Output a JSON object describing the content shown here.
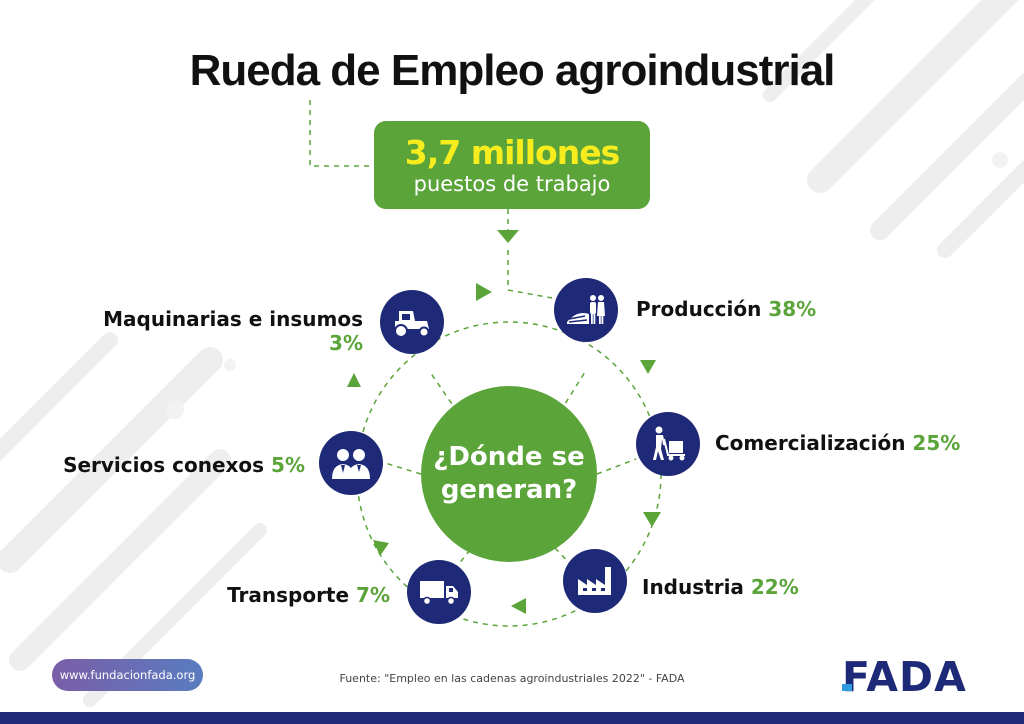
{
  "title": "Rueda de Empleo agroindustrial",
  "total": {
    "value": "3,7 millones",
    "unit": "puestos de trabajo"
  },
  "center": {
    "line1": "¿Dónde se",
    "line2": "generan?"
  },
  "sectors": [
    {
      "name": "Producción",
      "percent": "38%",
      "icon": "farmers-field-icon"
    },
    {
      "name": "Comercialización",
      "percent": "25%",
      "icon": "worker-handcart-icon"
    },
    {
      "name": "Industria",
      "percent": "22%",
      "icon": "factory-icon"
    },
    {
      "name": "Transporte",
      "percent": "7%",
      "icon": "truck-icon"
    },
    {
      "name": "Servicios conexos",
      "percent": "5%",
      "icon": "business-people-icon"
    },
    {
      "name": "Maquinarias e insumos",
      "percent": "3%",
      "icon": "tractor-icon"
    }
  ],
  "footer": {
    "website": "www.fundacionfada.org",
    "source": "Fuente: \"Empleo en las cadenas agroindustriales 2022\" - FADA",
    "logo": "FADA"
  },
  "colors": {
    "green": "#5ba43a",
    "navy": "#1e2a78",
    "yellow": "#f7ec1d"
  }
}
